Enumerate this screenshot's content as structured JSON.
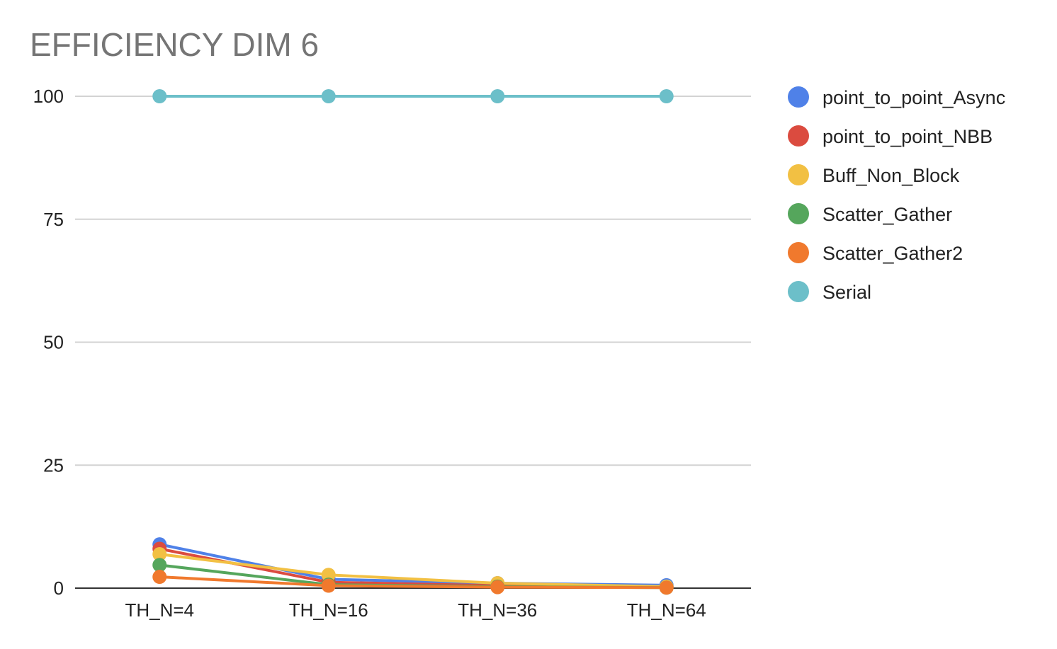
{
  "chart_data": {
    "type": "line",
    "title": "EFFICIENCY DIM 6",
    "xlabel": "",
    "ylabel": "",
    "categories": [
      "TH_N=4",
      "TH_N=16",
      "TH_N=36",
      "TH_N=64"
    ],
    "ylim": [
      0,
      100
    ],
    "yticks": [
      0,
      25,
      50,
      75,
      100
    ],
    "grid": true,
    "legend_position": "right",
    "series": [
      {
        "name": "point_to_point_Async",
        "color": "#4f81e8",
        "values": [
          8.9,
          1.8,
          1.0,
          0.6
        ]
      },
      {
        "name": "point_to_point_NBB",
        "color": "#db4b3f",
        "values": [
          8.0,
          1.2,
          0.5,
          0.2
        ]
      },
      {
        "name": "Buff_Non_Block",
        "color": "#f2c043",
        "values": [
          6.9,
          2.7,
          1.0,
          0.3
        ]
      },
      {
        "name": "Scatter_Gather",
        "color": "#55a65c",
        "values": [
          4.7,
          0.7,
          0.3,
          0.1
        ]
      },
      {
        "name": "Scatter_Gather2",
        "color": "#f0792d",
        "values": [
          2.3,
          0.5,
          0.2,
          0.1
        ]
      },
      {
        "name": "Serial",
        "color": "#6cbfc9",
        "values": [
          100,
          100,
          100,
          100
        ]
      }
    ]
  }
}
